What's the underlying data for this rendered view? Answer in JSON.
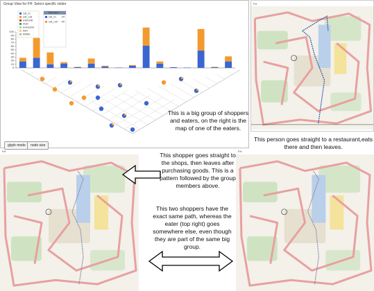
{
  "left_panel": {
    "title": "Group View for FH: Select specific visitor",
    "chart": {
      "type": "bar",
      "ylim": [
        0,
        100
      ],
      "yticks": [
        0,
        10,
        20,
        30,
        40,
        50,
        60,
        70,
        80,
        90,
        100
      ],
      "series": [
        {
          "name": "cat_in",
          "color": "#3a66d0",
          "values": [
            18,
            28,
            10,
            12,
            2,
            12,
            4,
            1,
            6,
            62,
            12,
            2,
            1,
            48,
            2,
            18
          ]
        },
        {
          "name": "cat_out",
          "color": "#f39a2e",
          "values": [
            10,
            55,
            33,
            4,
            1,
            14,
            2,
            0,
            2,
            50,
            6,
            0,
            0,
            60,
            1,
            14
          ]
        }
      ],
      "legend_extra": [
        {
          "name": "external",
          "color": "#d9342b"
        },
        {
          "name": "man",
          "color": "#3aa64a"
        },
        {
          "name": "everyone",
          "color": "#9ecae1"
        },
        {
          "name": "kiwi",
          "color": "#e8d56a"
        },
        {
          "name": "kiddie",
          "color": "#d2b48c"
        }
      ]
    },
    "target_box": {
      "header": "TARGET",
      "items": [
        {
          "label": "cat_in",
          "value": 24
        },
        {
          "label": "cat_out",
          "value": 40
        }
      ]
    },
    "annotation": "This is a big group of shoppers and eaters, on the right is the map of one of the eaters.",
    "buttons": [
      "glyph mode",
      "node size"
    ]
  },
  "right_panel": {
    "label": "FH",
    "caption": "This person goes straight to a restaurant,eats there and then leaves."
  },
  "bottom": {
    "label_left": "FH",
    "label_right": "FH",
    "text_top": "This shopper goes straight to the shops, then leaves after purchasing goods. This is a pattern followed by the group members above.",
    "text_bottom": "This two shoppers have the exact same path, whereas the eater (top right) goes somewhere else, even though they are part of the same big group."
  }
}
